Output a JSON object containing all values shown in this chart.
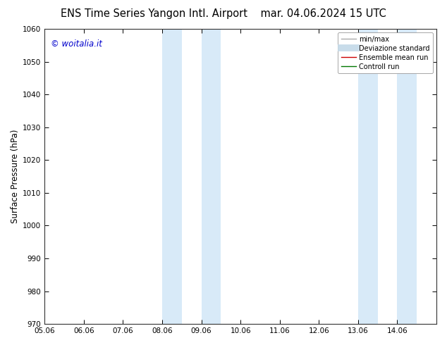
{
  "title_left": "ENS Time Series Yangon Intl. Airport",
  "title_right": "mar. 04.06.2024 15 UTC",
  "ylabel": "Surface Pressure (hPa)",
  "ylim": [
    970,
    1060
  ],
  "yticks": [
    970,
    980,
    990,
    1000,
    1010,
    1020,
    1030,
    1040,
    1050,
    1060
  ],
  "xlim": [
    0,
    10
  ],
  "xtick_labels": [
    "05.06",
    "06.06",
    "07.06",
    "08.06",
    "09.06",
    "10.06",
    "11.06",
    "12.06",
    "13.06",
    "14.06"
  ],
  "xtick_positions": [
    0,
    1,
    2,
    3,
    4,
    5,
    6,
    7,
    8,
    9
  ],
  "shaded_bands": [
    {
      "xmin": 3.0,
      "xmax": 3.5
    },
    {
      "xmin": 4.0,
      "xmax": 4.5
    },
    {
      "xmin": 8.0,
      "xmax": 8.5
    },
    {
      "xmin": 9.0,
      "xmax": 9.5
    }
  ],
  "shade_color": "#d8eaf8",
  "watermark_text": "© woitalia.it",
  "watermark_color": "#0000cc",
  "legend_entries": [
    {
      "label": "min/max",
      "color": "#aaaaaa",
      "linewidth": 1.0,
      "linestyle": "-"
    },
    {
      "label": "Deviazione standard",
      "color": "#c8dcea",
      "linewidth": 7,
      "linestyle": "-"
    },
    {
      "label": "Ensemble mean run",
      "color": "#cc0000",
      "linewidth": 1.0,
      "linestyle": "-"
    },
    {
      "label": "Controll run",
      "color": "#007700",
      "linewidth": 1.0,
      "linestyle": "-"
    }
  ],
  "title_fontsize": 10.5,
  "tick_fontsize": 7.5,
  "ylabel_fontsize": 8.5,
  "legend_fontsize": 7.0,
  "watermark_fontsize": 8.5,
  "background_color": "#ffffff",
  "spine_color": "#333333",
  "spine_linewidth": 0.8
}
